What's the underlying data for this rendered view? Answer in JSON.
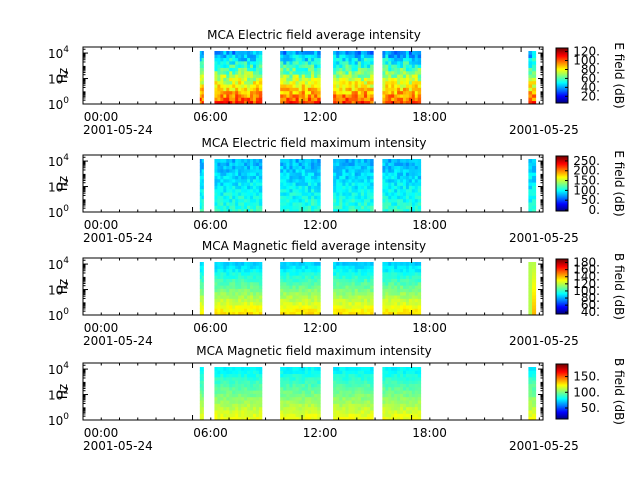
{
  "chart_data": [
    {
      "type": "heatmap",
      "title": "MCA  Electric field average intensity",
      "ylabel": "Hz",
      "yscale": "log",
      "ylim": [
        1,
        30000
      ],
      "y_ticks": [
        {
          "base": "10",
          "exp": "0"
        },
        {
          "base": "10",
          "exp": "2"
        },
        {
          "base": "10",
          "exp": "4"
        }
      ],
      "colorbar": {
        "label": "E field (dB)",
        "ticks": [
          "20.",
          "40.",
          "60.",
          "80.",
          "100.",
          "120."
        ],
        "tick_values": [
          20,
          40,
          60,
          80,
          100,
          120
        ],
        "range": [
          5,
          128
        ]
      },
      "x_ticks": [
        "00:00",
        "06:00",
        "12:00",
        "18:00",
        ""
      ],
      "x_date_left": "2001-05-24",
      "x_date_right": "2001-05-25",
      "data_segments_hours": [
        [
          6.4,
          6.6
        ],
        [
          7.2,
          9.8
        ],
        [
          10.8,
          13.0
        ],
        [
          13.7,
          15.9
        ],
        [
          16.4,
          18.5
        ],
        [
          24.4,
          24.8
        ]
      ],
      "color_scheme": "low freq strong (yellow/orange), mid green, high freq cyan/blue"
    },
    {
      "type": "heatmap",
      "title": "MCA  Electric field maximum intensity",
      "ylabel": "Hz",
      "yscale": "log",
      "ylim": [
        1,
        30000
      ],
      "y_ticks": [
        {
          "base": "10",
          "exp": "0"
        },
        {
          "base": "10",
          "exp": "2"
        },
        {
          "base": "10",
          "exp": "4"
        }
      ],
      "colorbar": {
        "label": "E field (dB)",
        "ticks": [
          "0.",
          "50.",
          "100.",
          "150.",
          "200.",
          "250."
        ],
        "tick_values": [
          0,
          50,
          100,
          150,
          200,
          250
        ],
        "range": [
          -5,
          275
        ]
      },
      "x_ticks": [
        "00:00",
        "06:00",
        "12:00",
        "18:00",
        ""
      ],
      "x_date_left": "2001-05-24",
      "x_date_right": "2001-05-25",
      "data_segments_hours": [
        [
          6.4,
          6.6
        ],
        [
          7.2,
          9.8
        ],
        [
          10.8,
          13.0
        ],
        [
          13.7,
          15.9
        ],
        [
          16.4,
          18.5
        ],
        [
          24.4,
          24.8
        ]
      ],
      "color_scheme": "mostly cyan/green, blue bands at high frequency"
    },
    {
      "type": "heatmap",
      "title": "MCA  Magnetic field average intensity",
      "ylabel": "Hz",
      "yscale": "log",
      "ylim": [
        1,
        30000
      ],
      "y_ticks": [
        {
          "base": "10",
          "exp": "0"
        },
        {
          "base": "10",
          "exp": "2"
        },
        {
          "base": "10",
          "exp": "4"
        }
      ],
      "colorbar": {
        "label": "B field (dB)",
        "ticks": [
          "40.",
          "60.",
          "80.",
          "100.",
          "120.",
          "140.",
          "160.",
          "180."
        ],
        "tick_values": [
          40,
          60,
          80,
          100,
          120,
          140,
          160,
          180
        ],
        "range": [
          35,
          190
        ]
      },
      "x_ticks": [
        "00:00",
        "06:00",
        "12:00",
        "18:00",
        ""
      ],
      "x_date_left": "2001-05-24",
      "x_date_right": "2001-05-25",
      "data_segments_hours": [
        [
          6.4,
          6.6
        ],
        [
          7.2,
          9.8
        ],
        [
          10.8,
          13.0
        ],
        [
          13.7,
          15.9
        ],
        [
          16.4,
          18.5
        ],
        [
          24.4,
          24.8
        ]
      ],
      "color_scheme": "cyan at top, green middle, yellow at bottom"
    },
    {
      "type": "heatmap",
      "title": "MCA  Magnetic field maximum intensity",
      "ylabel": "Hz",
      "yscale": "log",
      "ylim": [
        1,
        30000
      ],
      "y_ticks": [
        {
          "base": "10",
          "exp": "0"
        },
        {
          "base": "10",
          "exp": "2"
        },
        {
          "base": "10",
          "exp": "4"
        }
      ],
      "colorbar": {
        "label": "B field (dB)",
        "ticks": [
          "50.",
          "100.",
          "150."
        ],
        "tick_values": [
          50,
          100,
          150
        ],
        "range": [
          15,
          190
        ]
      },
      "x_ticks": [
        "00:00",
        "06:00",
        "12:00",
        "18:00",
        ""
      ],
      "x_date_left": "2001-05-24",
      "x_date_right": "2001-05-25",
      "data_segments_hours": [
        [
          6.4,
          6.6
        ],
        [
          7.2,
          9.8
        ],
        [
          10.8,
          13.0
        ],
        [
          13.7,
          15.9
        ],
        [
          16.4,
          18.5
        ],
        [
          24.4,
          24.8
        ]
      ],
      "color_scheme": "cyan/green top, yellow near bottom"
    }
  ]
}
